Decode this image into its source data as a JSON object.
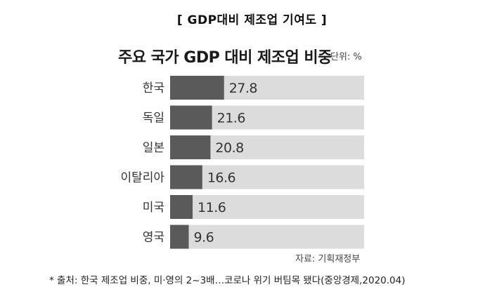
{
  "heading": "[  GDP대비  제조업  기여도  ]",
  "chart_data": {
    "type": "bar",
    "orientation": "horizontal",
    "title": "주요 국가 GDP 대비 제조업 비중",
    "unit_label": "단위: %",
    "categories": [
      "한국",
      "독일",
      "일본",
      "이탈리아",
      "미국",
      "영국"
    ],
    "values": [
      27.8,
      21.6,
      20.8,
      16.6,
      11.6,
      9.6
    ],
    "value_labels": [
      "27.8",
      "21.6",
      "20.8",
      "16.6",
      "11.6",
      "9.6"
    ],
    "xlim": [
      0,
      100
    ],
    "grid": false,
    "legend": "none",
    "bar_color": "#5a5a5a",
    "track_color": "#dcdcdc"
  },
  "source": "자료: 기획재정부",
  "footnote": "*  출처:  한국  제조업  비중,  미·영의  2~3배…코로나  위기  버팀목  됐다(중앙경제,2020.04)"
}
